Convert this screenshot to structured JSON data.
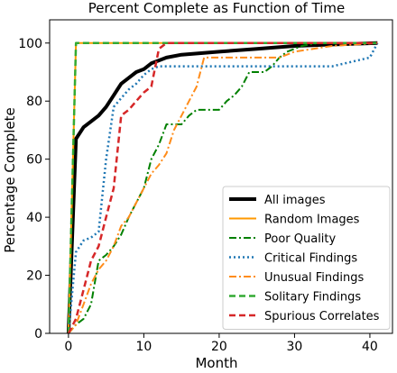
{
  "chart_data": {
    "type": "line",
    "title": "Percent Complete as Function of Time",
    "xlabel": "Month",
    "ylabel": "Percentage Complete",
    "xlim": [
      -2.5,
      43
    ],
    "ylim": [
      0,
      108
    ],
    "xticks": [
      0,
      10,
      20,
      30,
      40
    ],
    "yticks": [
      0,
      20,
      40,
      60,
      80,
      100
    ],
    "grid": false,
    "legend_position": "lower-right",
    "series": [
      {
        "name": "All images",
        "color": "#000000",
        "style": "solid",
        "width": 4,
        "points": [
          [
            0,
            0
          ],
          [
            1,
            67
          ],
          [
            2,
            71
          ],
          [
            3,
            73
          ],
          [
            4,
            75
          ],
          [
            5,
            78
          ],
          [
            6,
            82
          ],
          [
            7,
            86
          ],
          [
            8,
            88
          ],
          [
            9,
            90
          ],
          [
            10,
            91
          ],
          [
            11,
            93
          ],
          [
            12,
            94
          ],
          [
            13,
            95
          ],
          [
            15,
            96
          ],
          [
            20,
            97
          ],
          [
            25,
            98
          ],
          [
            30,
            99
          ],
          [
            35,
            99.5
          ],
          [
            41,
            100
          ]
        ]
      },
      {
        "name": "Random Images",
        "color": "#ff9900",
        "style": "solid",
        "width": 2,
        "points": [
          [
            0,
            0
          ],
          [
            1,
            100
          ],
          [
            41,
            100
          ]
        ]
      },
      {
        "name": "Poor Quality",
        "color": "#008000",
        "style": "dashdot",
        "width": 2,
        "points": [
          [
            0,
            0
          ],
          [
            1,
            3
          ],
          [
            2,
            5
          ],
          [
            3,
            10
          ],
          [
            4,
            25
          ],
          [
            5,
            27
          ],
          [
            6,
            30
          ],
          [
            7,
            34
          ],
          [
            8,
            40
          ],
          [
            9,
            45
          ],
          [
            10,
            50
          ],
          [
            11,
            60
          ],
          [
            12,
            65
          ],
          [
            13,
            72
          ],
          [
            15,
            72
          ],
          [
            16,
            75
          ],
          [
            17,
            77
          ],
          [
            20,
            77
          ],
          [
            21,
            80
          ],
          [
            22,
            82
          ],
          [
            23,
            85
          ],
          [
            24,
            90
          ],
          [
            26,
            90
          ],
          [
            27,
            92
          ],
          [
            28,
            95
          ],
          [
            29,
            97
          ],
          [
            31,
            99
          ],
          [
            33,
            100
          ],
          [
            41,
            100
          ]
        ]
      },
      {
        "name": "Critical Findings",
        "color": "#1f77b4",
        "style": "dotted",
        "width": 2.5,
        "points": [
          [
            0,
            0
          ],
          [
            1,
            28
          ],
          [
            2,
            32
          ],
          [
            3,
            33
          ],
          [
            4,
            35
          ],
          [
            5,
            60
          ],
          [
            6,
            78
          ],
          [
            7,
            81
          ],
          [
            8,
            84
          ],
          [
            9,
            86
          ],
          [
            10,
            89
          ],
          [
            11,
            91
          ],
          [
            12,
            92
          ],
          [
            35,
            92
          ],
          [
            40,
            95
          ],
          [
            41,
            100
          ]
        ]
      },
      {
        "name": "Unusual Findings",
        "color": "#ff8c1a",
        "style": "dashdot",
        "width": 2,
        "points": [
          [
            0,
            0
          ],
          [
            1,
            3
          ],
          [
            2,
            10
          ],
          [
            3,
            17
          ],
          [
            4,
            22
          ],
          [
            5,
            25
          ],
          [
            6,
            30
          ],
          [
            7,
            37
          ],
          [
            8,
            40
          ],
          [
            9,
            45
          ],
          [
            10,
            50
          ],
          [
            11,
            55
          ],
          [
            12,
            58
          ],
          [
            13,
            62
          ],
          [
            14,
            70
          ],
          [
            15,
            75
          ],
          [
            16,
            80
          ],
          [
            17,
            85
          ],
          [
            18,
            95
          ],
          [
            28,
            95
          ],
          [
            30,
            97
          ],
          [
            35,
            99
          ],
          [
            41,
            100
          ]
        ]
      },
      {
        "name": "Solitary Findings",
        "color": "#33aa33",
        "style": "dashed",
        "width": 2.5,
        "points": [
          [
            0,
            0
          ],
          [
            1,
            100
          ],
          [
            41,
            100
          ]
        ]
      },
      {
        "name": "Spurious Correlates",
        "color": "#d62728",
        "style": "dashed",
        "width": 2.5,
        "points": [
          [
            0,
            0
          ],
          [
            1,
            5
          ],
          [
            2,
            15
          ],
          [
            3,
            25
          ],
          [
            4,
            30
          ],
          [
            5,
            40
          ],
          [
            6,
            50
          ],
          [
            7,
            75
          ],
          [
            8,
            77
          ],
          [
            9,
            80
          ],
          [
            10,
            83
          ],
          [
            11,
            85
          ],
          [
            12,
            98
          ],
          [
            13,
            100
          ],
          [
            41,
            100
          ]
        ]
      }
    ]
  }
}
